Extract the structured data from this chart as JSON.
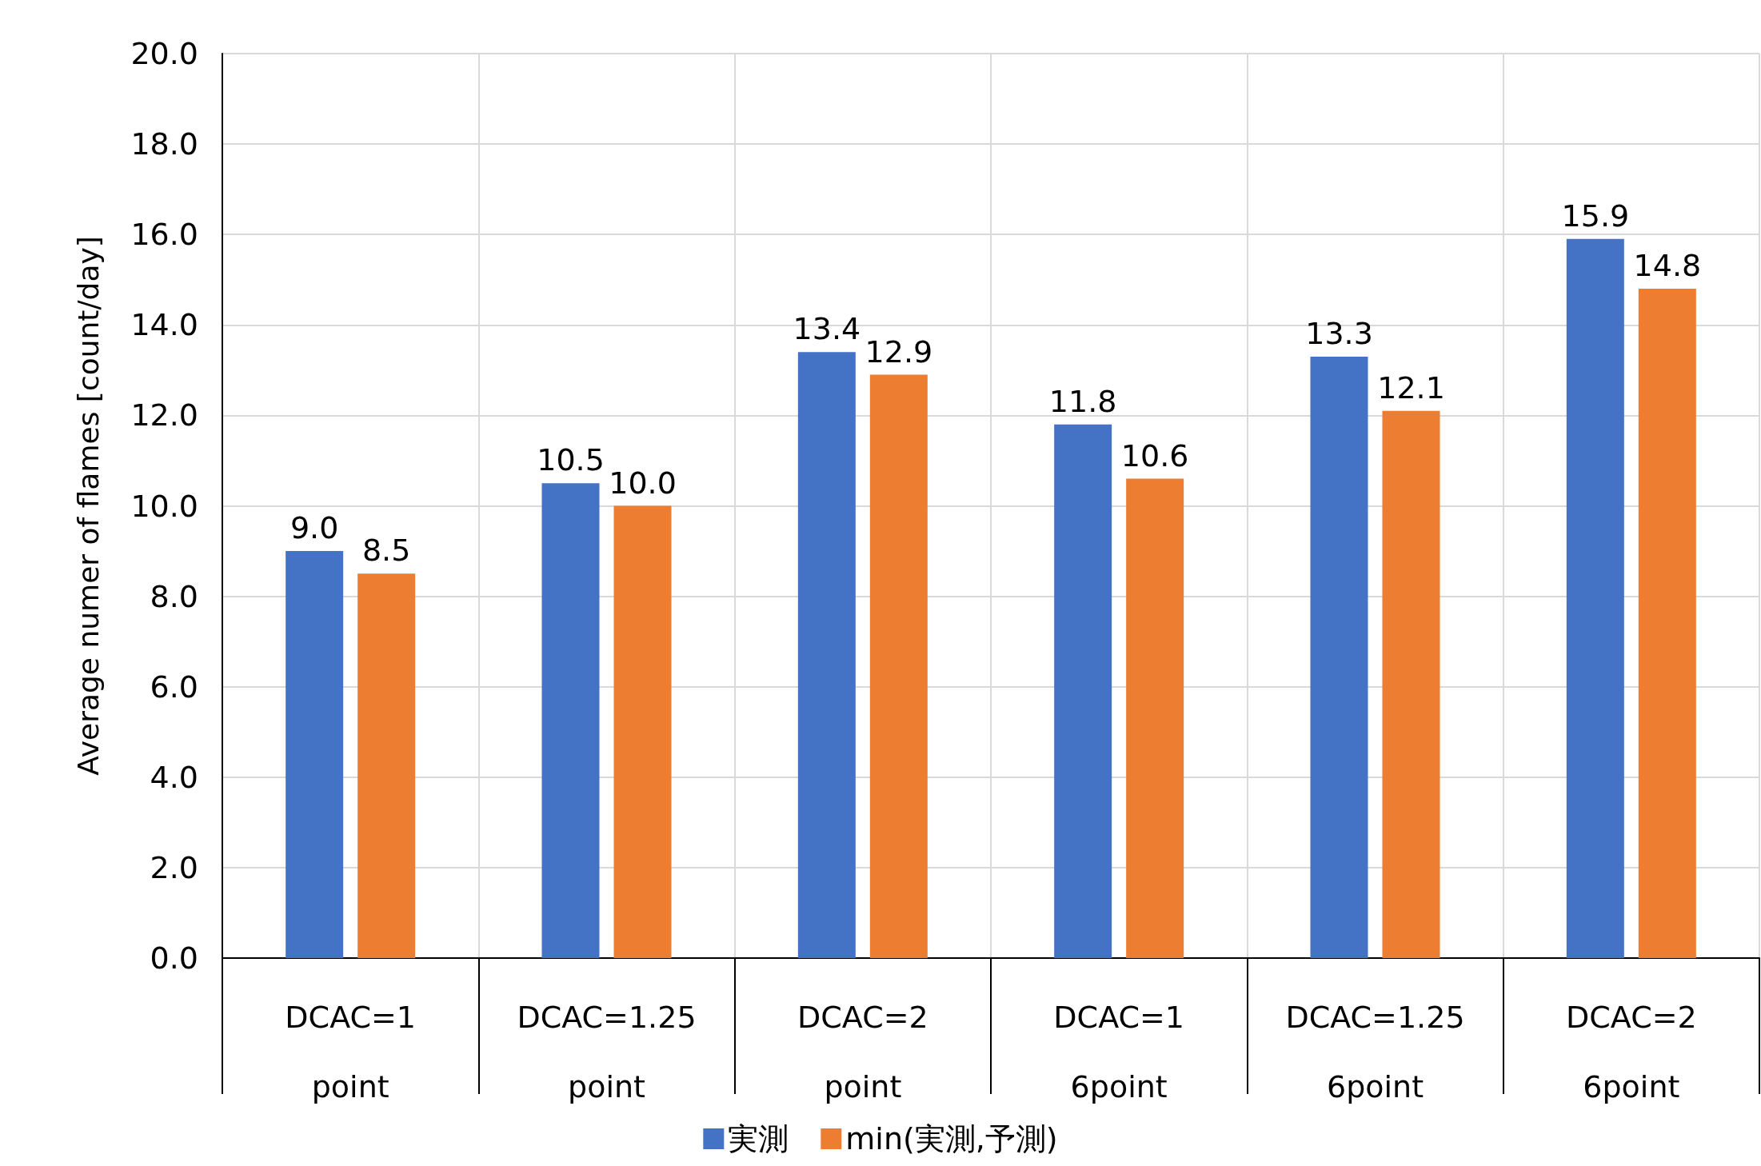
{
  "chart_data": {
    "type": "bar",
    "ylabel": "Average numer of flames [count/day]",
    "categories": [
      "DCAC=1\npoint",
      "DCAC=1.25\npoint",
      "DCAC=2\npoint",
      "DCAC=1\n6point",
      "DCAC=1.25\n6point",
      "DCAC=2\n6point"
    ],
    "series": [
      {
        "name": "実測",
        "color": "#4472c4",
        "values": [
          9.0,
          10.5,
          13.4,
          11.8,
          13.3,
          15.9
        ],
        "value_labels": [
          "9.0",
          "10.5",
          "13.4",
          "11.8",
          "13.3",
          "15.9"
        ]
      },
      {
        "name": "min(実測,予測)",
        "color": "#ed7d31",
        "values": [
          8.5,
          10.0,
          12.9,
          10.6,
          12.1,
          14.8
        ],
        "value_labels": [
          "8.5",
          "10.0",
          "12.9",
          "10.6",
          "12.1",
          "14.8"
        ]
      }
    ],
    "ylim": [
      0,
      20
    ],
    "yticks": [
      {
        "value": 0,
        "label": "0.0"
      },
      {
        "value": 2,
        "label": "2.0"
      },
      {
        "value": 4,
        "label": "4.0"
      },
      {
        "value": 6,
        "label": "6.0"
      },
      {
        "value": 8,
        "label": "8.0"
      },
      {
        "value": 10,
        "label": "10.0"
      },
      {
        "value": 12,
        "label": "12.0"
      },
      {
        "value": 14,
        "label": "14.0"
      },
      {
        "value": 16,
        "label": "16.0"
      },
      {
        "value": 18,
        "label": "18.0"
      },
      {
        "value": 20,
        "label": "20.0"
      }
    ],
    "grid": true,
    "legend": "bottom"
  }
}
